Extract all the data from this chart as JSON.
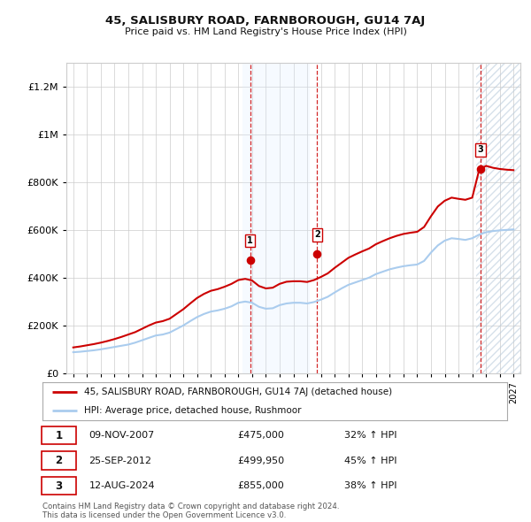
{
  "title": "45, SALISBURY ROAD, FARNBOROUGH, GU14 7AJ",
  "subtitle": "Price paid vs. HM Land Registry's House Price Index (HPI)",
  "red_label": "45, SALISBURY ROAD, FARNBOROUGH, GU14 7AJ (detached house)",
  "blue_label": "HPI: Average price, detached house, Rushmoor",
  "transactions": [
    {
      "num": 1,
      "date": "09-NOV-2007",
      "price": "£475,000",
      "hpi": "32% ↑ HPI",
      "year": 2007.86,
      "price_val": 475000
    },
    {
      "num": 2,
      "date": "25-SEP-2012",
      "price": "£499,950",
      "hpi": "45% ↑ HPI",
      "year": 2012.73,
      "price_val": 499950
    },
    {
      "num": 3,
      "date": "12-AUG-2024",
      "price": "£855,000",
      "hpi": "38% ↑ HPI",
      "year": 2024.62,
      "price_val": 855000
    }
  ],
  "footer": "Contains HM Land Registry data © Crown copyright and database right 2024.\nThis data is licensed under the Open Government Licence v3.0.",
  "ylim": [
    0,
    1300000
  ],
  "yticks": [
    0,
    200000,
    400000,
    600000,
    800000,
    1000000,
    1200000
  ],
  "xlim_start": 1994.5,
  "xlim_end": 2027.5,
  "background_color": "#ffffff",
  "plot_bg_color": "#ffffff",
  "grid_color": "#cccccc",
  "red_color": "#cc0000",
  "blue_color": "#aaccee",
  "shade_color": "#ddeeff",
  "hatch_color": "#aabbcc",
  "shade1_xmin": 2007.3,
  "shade1_xmax": 2012.2,
  "shade3_xmin": 2024.3,
  "shade3_xmax": 2027.5
}
